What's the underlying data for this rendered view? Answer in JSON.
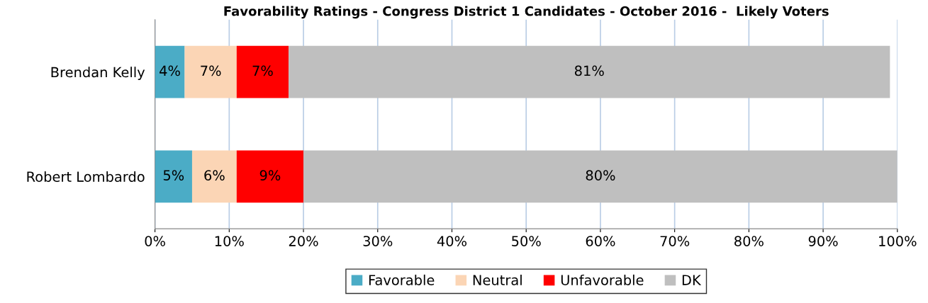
{
  "chart_data": {
    "type": "bar",
    "title": "Favorability Ratings - Congress District 1 Candidates - October 2016 -  Likely Voters",
    "orientation": "horizontal",
    "stacked": true,
    "categories": [
      "Brendan Kelly",
      "Robert Lombardo"
    ],
    "series": [
      {
        "name": "Favorable",
        "color": "#4bacc6",
        "values": [
          4,
          5
        ],
        "value_labels": [
          "4%",
          "5%"
        ]
      },
      {
        "name": "Neutral",
        "color": "#fbd5b5",
        "values": [
          7,
          6
        ],
        "value_labels": [
          "7%",
          "6%"
        ]
      },
      {
        "name": "Unfavorable",
        "color": "#ff0000",
        "values": [
          7,
          9
        ],
        "value_labels": [
          "7%",
          "9%"
        ]
      },
      {
        "name": "DK",
        "color": "#bfbfbf",
        "values": [
          81,
          80
        ],
        "value_labels": [
          "81%",
          "80%"
        ]
      }
    ],
    "xlim": [
      0,
      100
    ],
    "xticks": [
      {
        "value": 0,
        "label": "0%"
      },
      {
        "value": 10,
        "label": "10%"
      },
      {
        "value": 20,
        "label": "20%"
      },
      {
        "value": 30,
        "label": "30%"
      },
      {
        "value": 40,
        "label": "40%"
      },
      {
        "value": 50,
        "label": "50%"
      },
      {
        "value": 60,
        "label": "60%"
      },
      {
        "value": 70,
        "label": "70%"
      },
      {
        "value": 80,
        "label": "80%"
      },
      {
        "value": 90,
        "label": "90%"
      },
      {
        "value": 100,
        "label": "100%"
      }
    ],
    "grid": "x",
    "legend": "bottom"
  }
}
